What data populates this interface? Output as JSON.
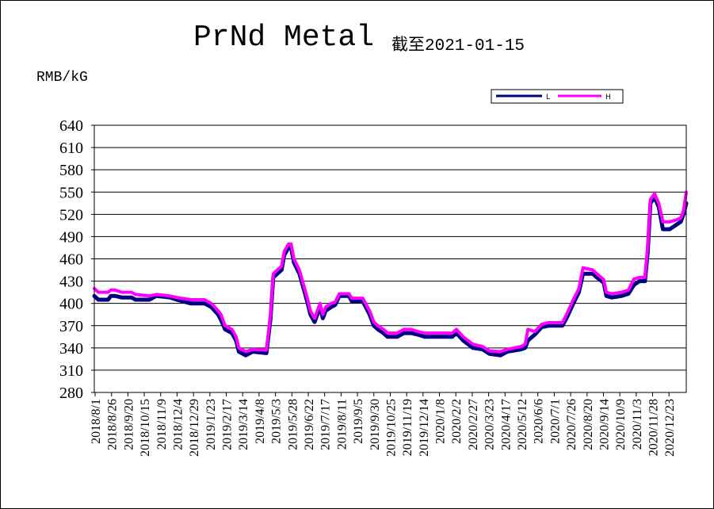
{
  "title": "PrNd Metal",
  "subtitle": "截至2021-01-15",
  "chart_data": {
    "type": "line",
    "ylabel": "RMB/kG",
    "ylim": [
      280,
      640
    ],
    "yticks": [
      "640",
      "610",
      "580",
      "550",
      "520",
      "490",
      "460",
      "430",
      "400",
      "370",
      "340",
      "310",
      "280"
    ],
    "xticks": [
      "2018/8/1",
      "2018/8/26",
      "2018/9/20",
      "2018/10/15",
      "2018/11/9",
      "2018/12/4",
      "2018/12/29",
      "2019/1/23",
      "2019/2/17",
      "2019/3/14",
      "2019/4/8",
      "2019/5/3",
      "2019/5/28",
      "2019/6/22",
      "2019/7/17",
      "2019/8/11",
      "2019/9/5",
      "2019/9/30",
      "2019/10/25",
      "2019/11/19",
      "2019/12/14",
      "2020/1/8",
      "2020/2/2",
      "2020/2/27",
      "2020/3/23",
      "2020/4/17",
      "2020/5/12",
      "2020/6/6",
      "2020/7/1",
      "2020/7/26",
      "2020/8/20",
      "2020/9/14",
      "2020/10/9",
      "2020/11/3",
      "2020/11/28",
      "2020/12/23"
    ],
    "grid": true,
    "legend": "top-right",
    "series": [
      {
        "name": "L",
        "color": "#000080",
        "points": [
          [
            0,
            410
          ],
          [
            3,
            405
          ],
          [
            10,
            405
          ],
          [
            12,
            410
          ],
          [
            15,
            410
          ],
          [
            20,
            408
          ],
          [
            27,
            408
          ],
          [
            30,
            405
          ],
          [
            40,
            405
          ],
          [
            45,
            410
          ],
          [
            55,
            408
          ],
          [
            60,
            405
          ],
          [
            70,
            400
          ],
          [
            80,
            400
          ],
          [
            85,
            395
          ],
          [
            90,
            385
          ],
          [
            92,
            378
          ],
          [
            95,
            365
          ],
          [
            100,
            360
          ],
          [
            103,
            350
          ],
          [
            105,
            335
          ],
          [
            110,
            330
          ],
          [
            115,
            335
          ],
          [
            125,
            333
          ],
          [
            128,
            380
          ],
          [
            130,
            435
          ],
          [
            133,
            440
          ],
          [
            136,
            445
          ],
          [
            138,
            465
          ],
          [
            141,
            475
          ],
          [
            143,
            475
          ],
          [
            145,
            455
          ],
          [
            149,
            440
          ],
          [
            152,
            420
          ],
          [
            155,
            400
          ],
          [
            157,
            385
          ],
          [
            160,
            375
          ],
          [
            162,
            385
          ],
          [
            164,
            395
          ],
          [
            166,
            380
          ],
          [
            168,
            390
          ],
          [
            172,
            395
          ],
          [
            175,
            398
          ],
          [
            178,
            410
          ],
          [
            185,
            410
          ],
          [
            187,
            403
          ],
          [
            195,
            403
          ],
          [
            200,
            385
          ],
          [
            203,
            370
          ],
          [
            206,
            365
          ],
          [
            210,
            360
          ],
          [
            213,
            355
          ],
          [
            220,
            355
          ],
          [
            225,
            360
          ],
          [
            230,
            360
          ],
          [
            235,
            358
          ],
          [
            240,
            355
          ],
          [
            260,
            355
          ],
          [
            263,
            360
          ],
          [
            268,
            350
          ],
          [
            275,
            340
          ],
          [
            282,
            338
          ],
          [
            287,
            332
          ],
          [
            295,
            330
          ],
          [
            300,
            335
          ],
          [
            310,
            338
          ],
          [
            313,
            340
          ],
          [
            315,
            350
          ],
          [
            320,
            358
          ],
          [
            325,
            368
          ],
          [
            330,
            370
          ],
          [
            340,
            370
          ],
          [
            343,
            380
          ],
          [
            348,
            400
          ],
          [
            352,
            415
          ],
          [
            355,
            440
          ],
          [
            362,
            440
          ],
          [
            365,
            435
          ],
          [
            370,
            428
          ],
          [
            372,
            410
          ],
          [
            376,
            408
          ],
          [
            383,
            410
          ],
          [
            388,
            413
          ],
          [
            392,
            425
          ],
          [
            396,
            430
          ],
          [
            400,
            430
          ],
          [
            402,
            470
          ],
          [
            404,
            535
          ],
          [
            407,
            543
          ],
          [
            410,
            530
          ],
          [
            413,
            500
          ],
          [
            418,
            500
          ],
          [
            422,
            505
          ],
          [
            426,
            510
          ],
          [
            428,
            520
          ],
          [
            430,
            535
          ]
        ]
      },
      {
        "name": "H",
        "color": "#ff00ff",
        "points": [
          [
            0,
            420
          ],
          [
            3,
            415
          ],
          [
            10,
            415
          ],
          [
            12,
            418
          ],
          [
            15,
            418
          ],
          [
            20,
            415
          ],
          [
            27,
            415
          ],
          [
            30,
            412
          ],
          [
            40,
            410
          ],
          [
            45,
            412
          ],
          [
            55,
            410
          ],
          [
            60,
            408
          ],
          [
            70,
            405
          ],
          [
            80,
            405
          ],
          [
            85,
            400
          ],
          [
            90,
            390
          ],
          [
            92,
            385
          ],
          [
            95,
            370
          ],
          [
            100,
            365
          ],
          [
            103,
            355
          ],
          [
            105,
            340
          ],
          [
            110,
            335
          ],
          [
            115,
            338
          ],
          [
            125,
            337
          ],
          [
            128,
            385
          ],
          [
            130,
            440
          ],
          [
            133,
            445
          ],
          [
            136,
            450
          ],
          [
            138,
            470
          ],
          [
            141,
            480
          ],
          [
            143,
            480
          ],
          [
            145,
            460
          ],
          [
            149,
            445
          ],
          [
            152,
            425
          ],
          [
            155,
            405
          ],
          [
            157,
            390
          ],
          [
            160,
            380
          ],
          [
            162,
            390
          ],
          [
            164,
            400
          ],
          [
            166,
            385
          ],
          [
            168,
            395
          ],
          [
            172,
            400
          ],
          [
            175,
            402
          ],
          [
            178,
            413
          ],
          [
            185,
            413
          ],
          [
            187,
            407
          ],
          [
            195,
            407
          ],
          [
            200,
            390
          ],
          [
            203,
            375
          ],
          [
            206,
            370
          ],
          [
            210,
            365
          ],
          [
            213,
            360
          ],
          [
            220,
            360
          ],
          [
            225,
            365
          ],
          [
            230,
            365
          ],
          [
            235,
            362
          ],
          [
            240,
            360
          ],
          [
            260,
            360
          ],
          [
            263,
            365
          ],
          [
            268,
            355
          ],
          [
            275,
            345
          ],
          [
            282,
            342
          ],
          [
            287,
            336
          ],
          [
            295,
            335
          ],
          [
            300,
            338
          ],
          [
            310,
            342
          ],
          [
            313,
            345
          ],
          [
            315,
            365
          ],
          [
            320,
            362
          ],
          [
            325,
            372
          ],
          [
            330,
            374
          ],
          [
            340,
            374
          ],
          [
            343,
            385
          ],
          [
            348,
            405
          ],
          [
            352,
            420
          ],
          [
            355,
            448
          ],
          [
            362,
            445
          ],
          [
            365,
            440
          ],
          [
            370,
            432
          ],
          [
            372,
            415
          ],
          [
            376,
            413
          ],
          [
            383,
            415
          ],
          [
            388,
            418
          ],
          [
            392,
            433
          ],
          [
            396,
            435
          ],
          [
            400,
            435
          ],
          [
            402,
            478
          ],
          [
            404,
            540
          ],
          [
            407,
            548
          ],
          [
            410,
            535
          ],
          [
            413,
            510
          ],
          [
            418,
            510
          ],
          [
            422,
            512
          ],
          [
            426,
            515
          ],
          [
            428,
            525
          ],
          [
            430,
            550
          ]
        ]
      }
    ]
  }
}
